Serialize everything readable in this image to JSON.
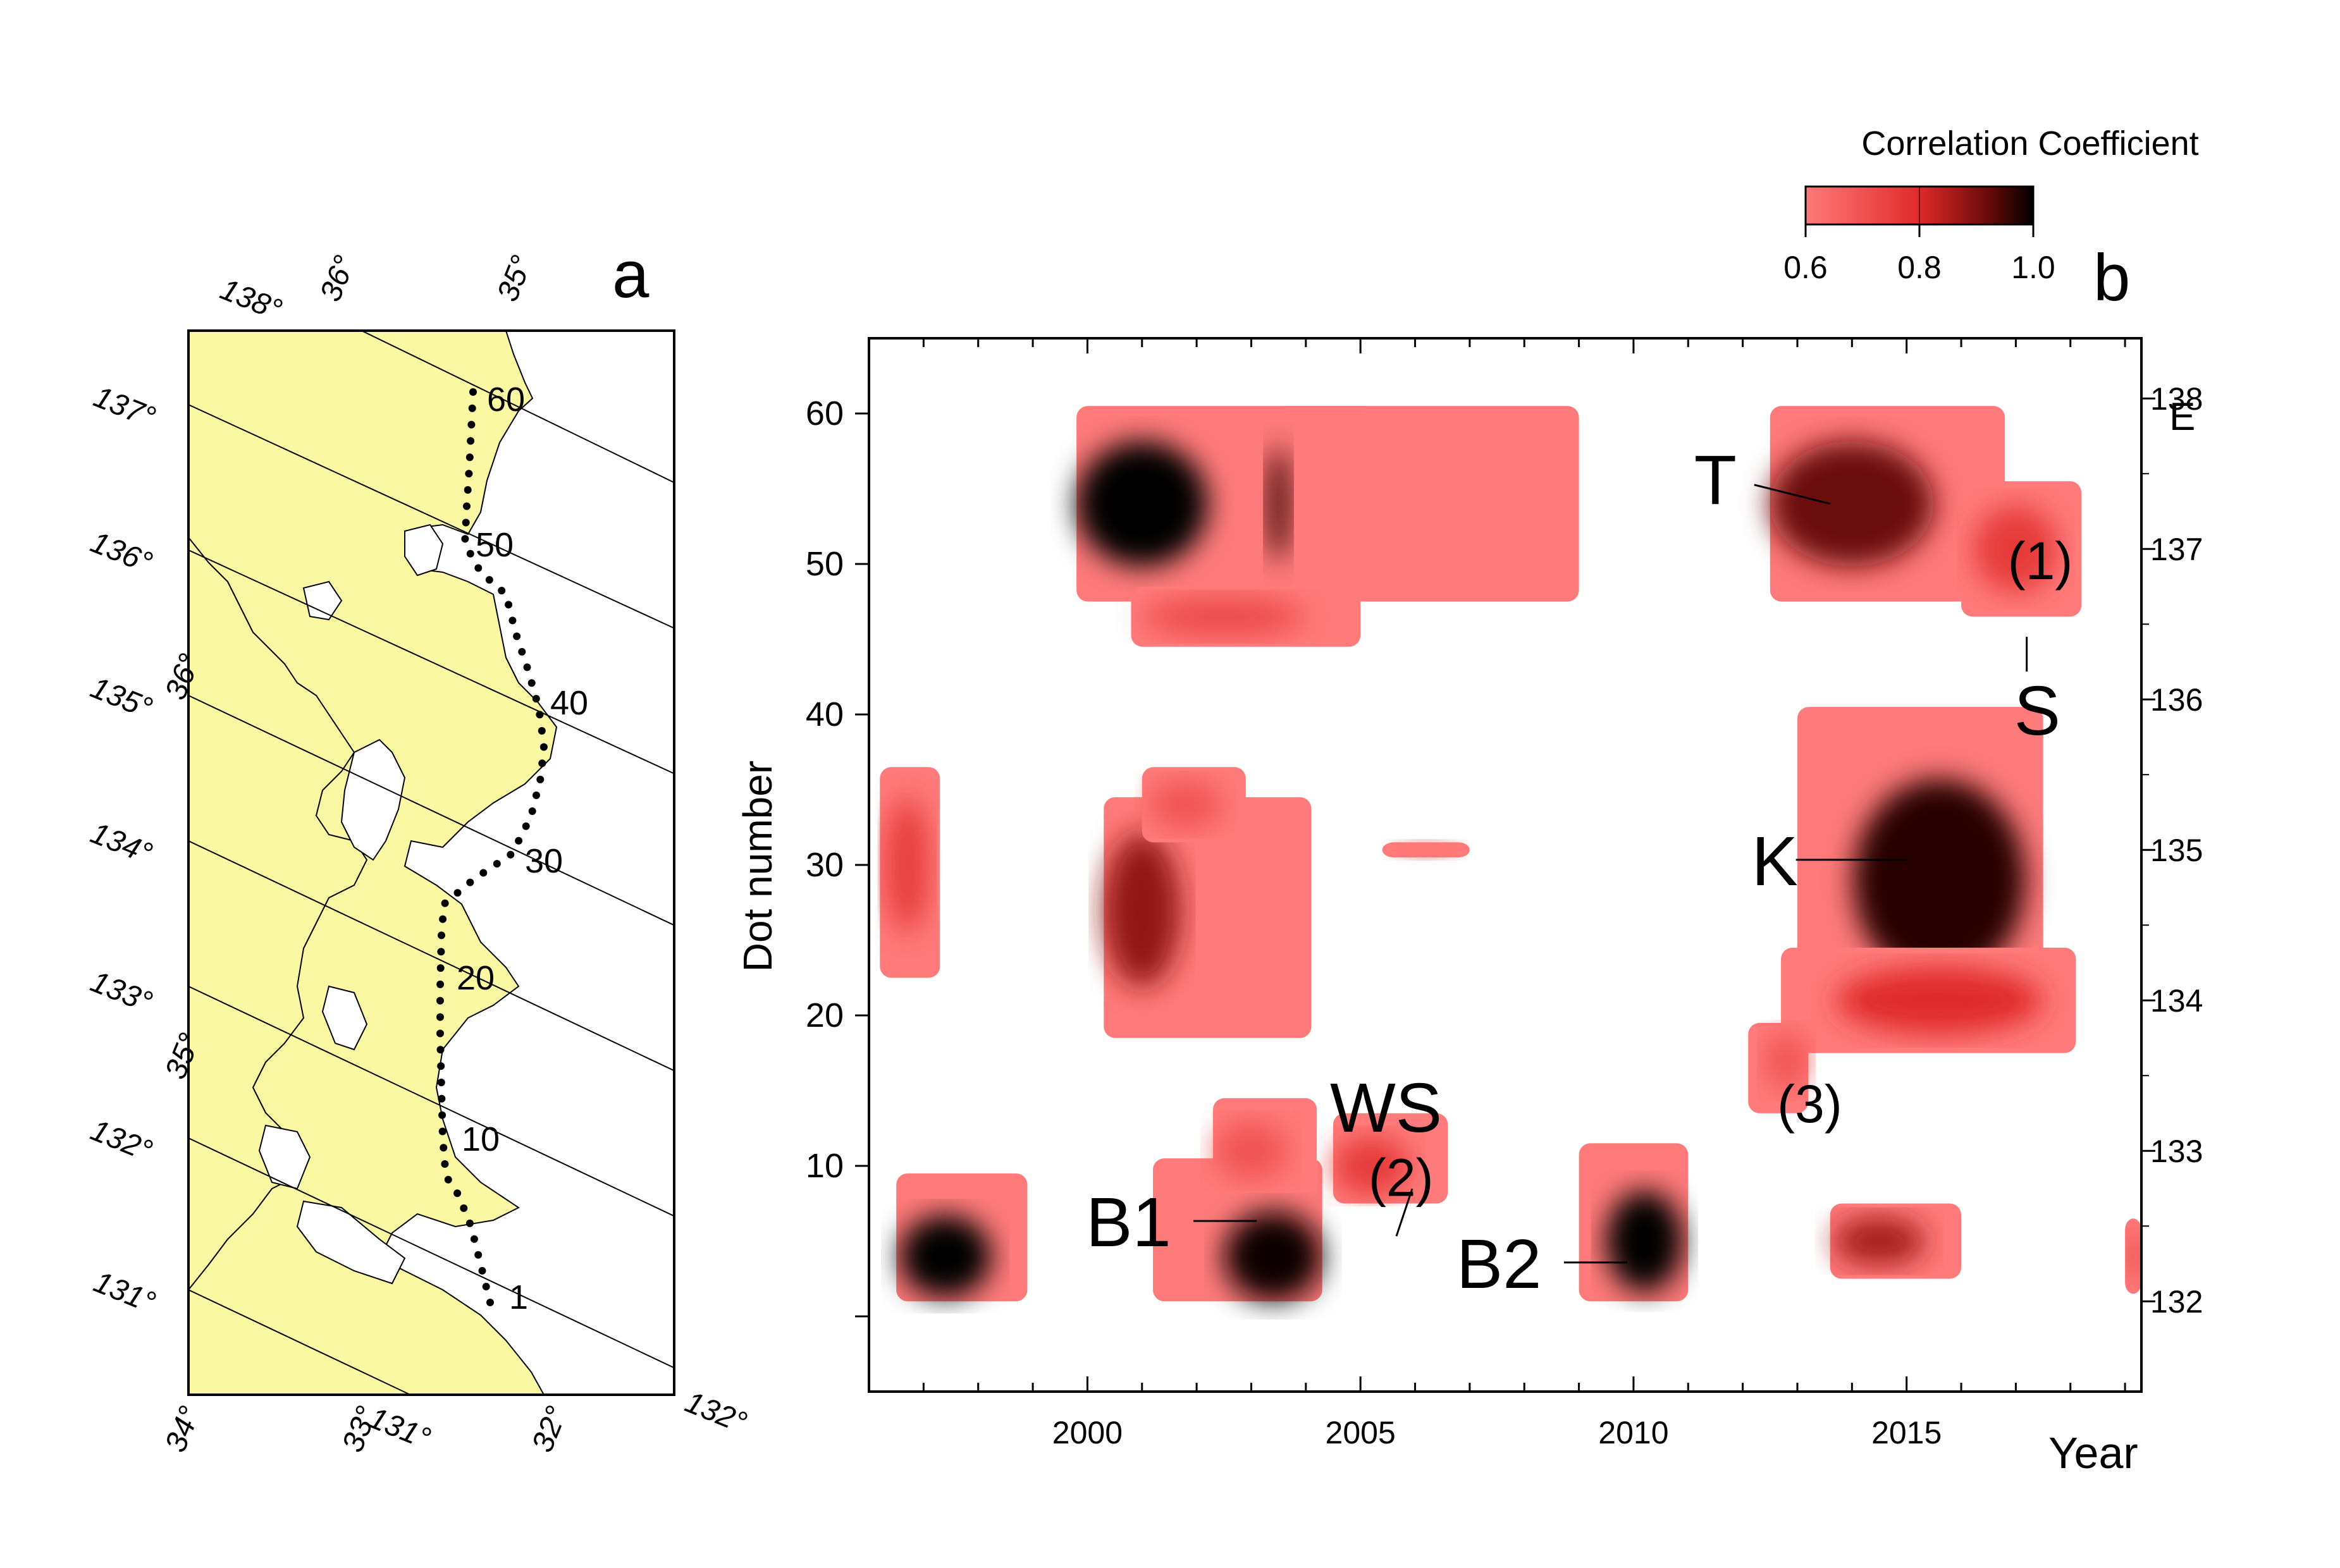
{
  "colors": {
    "land": "#fbf8a3",
    "sea": "#ffffff",
    "scale_low": "#ff6b6b",
    "scale_mid": "#e63232",
    "scale_high": "#000000",
    "frame": "#000000"
  },
  "map": {
    "panel_label": "a",
    "dot_labels": [
      "1",
      "10",
      "20",
      "30",
      "40",
      "50",
      "60"
    ],
    "lon_labels": [
      "137°",
      "136°",
      "135°",
      "134°",
      "133°",
      "132°",
      "131°",
      "138°",
      "131°",
      "132°"
    ],
    "lat_labels": [
      "36°",
      "35°",
      "36°",
      "35°",
      "34°",
      "33°",
      "32°"
    ],
    "dot_count": 61
  },
  "colorbar": {
    "title": "Correlation Coefficient",
    "tick_labels": [
      "0.6",
      "0.8",
      "1.0"
    ],
    "ticks": [
      0.6,
      0.8,
      1.0
    ]
  },
  "chart_data": {
    "type": "heatmap",
    "panel_label": "b",
    "ylabel": "Dot number",
    "xlabel": "Year",
    "right_axis_label": "E",
    "xlim": [
      1996,
      2019.3
    ],
    "ylim": [
      -5,
      65
    ],
    "x_ticks": [
      2000,
      2005,
      2010,
      2015
    ],
    "x_tick_labels": [
      "2000",
      "2005",
      "2010",
      "2015"
    ],
    "y_ticks": [
      10,
      20,
      30,
      40,
      50,
      60
    ],
    "y_tick_labels": [
      "10",
      "20",
      "30",
      "40",
      "50",
      "60"
    ],
    "right_ticks": [
      {
        "dot": 1,
        "label": "132"
      },
      {
        "dot": 11,
        "label": "133"
      },
      {
        "dot": 21,
        "label": "134"
      },
      {
        "dot": 31,
        "label": "135"
      },
      {
        "dot": 41,
        "label": "136"
      },
      {
        "dot": 51,
        "label": "137"
      },
      {
        "dot": 61,
        "label": "138"
      }
    ],
    "colorscale_range": [
      0.6,
      1.0
    ],
    "regions": [
      {
        "label": "B1",
        "x0": 2001.2,
        "x1": 2004.3,
        "y0": 1,
        "y1": 10.5,
        "peak_x": 2003.4,
        "peak_y": 4,
        "peak_r": 0.99
      },
      {
        "label": "B2",
        "x0": 2009.0,
        "x1": 2011.0,
        "y0": 1,
        "y1": 11.5,
        "peak_x": 2010.2,
        "peak_y": 5,
        "peak_r": 1.0
      },
      {
        "label": "",
        "x0": 1996.5,
        "x1": 1998.9,
        "y0": 1,
        "y1": 9.5,
        "peak_x": 1997.4,
        "peak_y": 4,
        "peak_r": 1.0
      },
      {
        "label": "WS",
        "x0": 2004.5,
        "x1": 2006.6,
        "y0": 7.5,
        "y1": 13.5,
        "peak_x": 2005.2,
        "peak_y": 10,
        "peak_r": 0.76
      },
      {
        "label": "",
        "x0": 2002.3,
        "x1": 2004.2,
        "y0": 8.5,
        "y1": 14.5,
        "peak_x": 2003.0,
        "peak_y": 11,
        "peak_r": 0.7
      },
      {
        "label": "",
        "x0": 2000.3,
        "x1": 2004.1,
        "y0": 18.5,
        "y1": 34.5,
        "peak_x": 2001.0,
        "peak_y": 27,
        "peak_r": 0.88
      },
      {
        "label": "",
        "x0": 2001.0,
        "x1": 2002.9,
        "y0": 31.5,
        "y1": 36.5,
        "peak_x": 2001.8,
        "peak_y": 34,
        "peak_r": 0.7
      },
      {
        "label": "",
        "x0": 1996.2,
        "x1": 1997.3,
        "y0": 22.5,
        "y1": 36.5,
        "peak_x": 1996.7,
        "peak_y": 30,
        "peak_r": 0.76
      },
      {
        "label": "",
        "x0": 1999.8,
        "x1": 2009.0,
        "y0": 47.5,
        "y1": 60.5,
        "peak_x": 2001.0,
        "peak_y": 54,
        "peak_r": 1.0
      },
      {
        "label": "",
        "x0": 2003.3,
        "x1": 2005.3,
        "y0": 48.5,
        "y1": 60.5,
        "peak_x": 2003.5,
        "peak_y": 54,
        "peak_r": 0.96
      },
      {
        "label": "",
        "x0": 2000.8,
        "x1": 2005.0,
        "y0": 44.5,
        "y1": 48.5,
        "peak_x": 2002.5,
        "peak_y": 46.5,
        "peak_r": 0.72
      },
      {
        "label": "T",
        "x0": 2012.5,
        "x1": 2016.8,
        "y0": 47.5,
        "y1": 60.5,
        "peak_x": 2014.0,
        "peak_y": 54,
        "peak_r": 0.92
      },
      {
        "label": "S",
        "x0": 2016.0,
        "x1": 2018.2,
        "y0": 46.5,
        "y1": 55.5,
        "peak_x": 2017.0,
        "peak_y": 51,
        "peak_r": 0.76
      },
      {
        "label": "K",
        "x0": 2013.0,
        "x1": 2017.5,
        "y0": 19.5,
        "y1": 40.5,
        "peak_x": 2015.6,
        "peak_y": 29,
        "peak_r": 0.97
      },
      {
        "label": "",
        "x0": 2012.7,
        "x1": 2018.1,
        "y0": 17.5,
        "y1": 24.5,
        "peak_x": 2015.6,
        "peak_y": 21,
        "peak_r": 0.8
      },
      {
        "label": "",
        "x0": 2012.1,
        "x1": 2013.2,
        "y0": 13.5,
        "y1": 19.5,
        "peak_x": 2012.8,
        "peak_y": 17,
        "peak_r": 0.7
      },
      {
        "label": "",
        "x0": 2013.6,
        "x1": 2016.0,
        "y0": 2.5,
        "y1": 7.5,
        "peak_x": 2014.5,
        "peak_y": 5,
        "peak_r": 0.86
      },
      {
        "label": "",
        "x0": 2019.0,
        "x1": 2019.3,
        "y0": 1.5,
        "y1": 6.5,
        "peak_x": 2019.2,
        "peak_y": 4,
        "peak_r": 0.76
      },
      {
        "label": "",
        "x0": 2005.4,
        "x1": 2007.0,
        "y0": 30.5,
        "y1": 31.5,
        "peak_x": 2006.2,
        "peak_y": 31,
        "peak_r": 0.62
      }
    ]
  },
  "annotations": [
    {
      "text": "T",
      "x": 2013.6,
      "y": 54
    },
    {
      "text": "(1)",
      "x": 2017.2,
      "y": 49
    },
    {
      "text": "S",
      "x": 2017.2,
      "y": 46
    },
    {
      "text": "K",
      "x": 2015.0,
      "y": 29.5
    },
    {
      "text": "WS",
      "x": 2005.6,
      "y": 11
    },
    {
      "text": "(2)",
      "x": 2004.8,
      "y": 8
    },
    {
      "text": "B1",
      "x": 2003.1,
      "y": 5.5
    },
    {
      "text": "B2",
      "x": 2010.0,
      "y": 4
    },
    {
      "text": "(3)",
      "x": 2012.4,
      "y": 15
    }
  ]
}
